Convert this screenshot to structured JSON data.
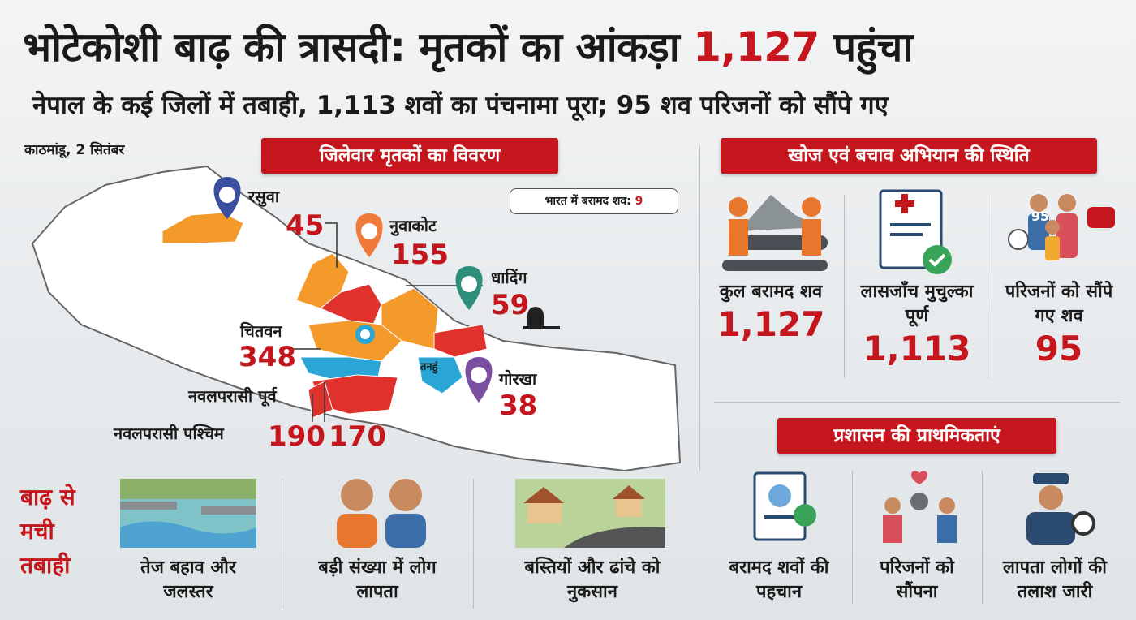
{
  "header": {
    "title_start": "भोटेकोशी बाढ़ की त्रासदी: मृतकों का आंकड़ा",
    "title_highlight": "1,127",
    "title_end": "पहुंचा",
    "subtitle": "नेपाल के कई जिलों में तबाही, 1,113 शवों का पंचनामा पूरा; 95 शव परिजनों को सौंपे गए",
    "dateline": "काठमांडू, 2 सितंबर"
  },
  "map": {
    "heading": "जिलेवार मृतकों का विवरण",
    "india_note": {
      "label": "भारत में बरामद शव:",
      "value": "9"
    },
    "region_label": "तनहुं",
    "districts": [
      {
        "name": "रसुवा",
        "count": "45"
      },
      {
        "name": "नुवाकोट",
        "count": "155"
      },
      {
        "name": "धादिंग",
        "count": "59"
      },
      {
        "name": "चितवन",
        "count": "348"
      },
      {
        "name": "गोरखा",
        "count": "38"
      },
      {
        "name": "नवलपरासी पूर्व",
        "count": "170"
      },
      {
        "name": "नवलपरासी पश्चिम",
        "count": "190"
      }
    ]
  },
  "rescue": {
    "heading": "खोज एवं बचाव अभियान की स्थिति",
    "badge": "95",
    "items": [
      {
        "label": "कुल बरामद शव",
        "value": "1,127"
      },
      {
        "label": "लासजाँच मुचुल्का पूर्ण",
        "value": "1,113"
      },
      {
        "label": "परिजनों को सौंपे गए शव",
        "value": "95"
      }
    ]
  },
  "priorities": {
    "heading": "प्रशासन की प्राथमिकताएं",
    "items": [
      "बरामद शवों की पहचान",
      "परिजनों को सौंपना",
      "लापता लोगों की तलाश जारी"
    ]
  },
  "damage": {
    "heading": "बाढ़ से मची तबाही",
    "items": [
      "तेज बहाव और जलस्तर",
      "बड़ी संख्या में लोग लापता",
      "बस्तियों और ढांचे को नुकसान"
    ]
  }
}
